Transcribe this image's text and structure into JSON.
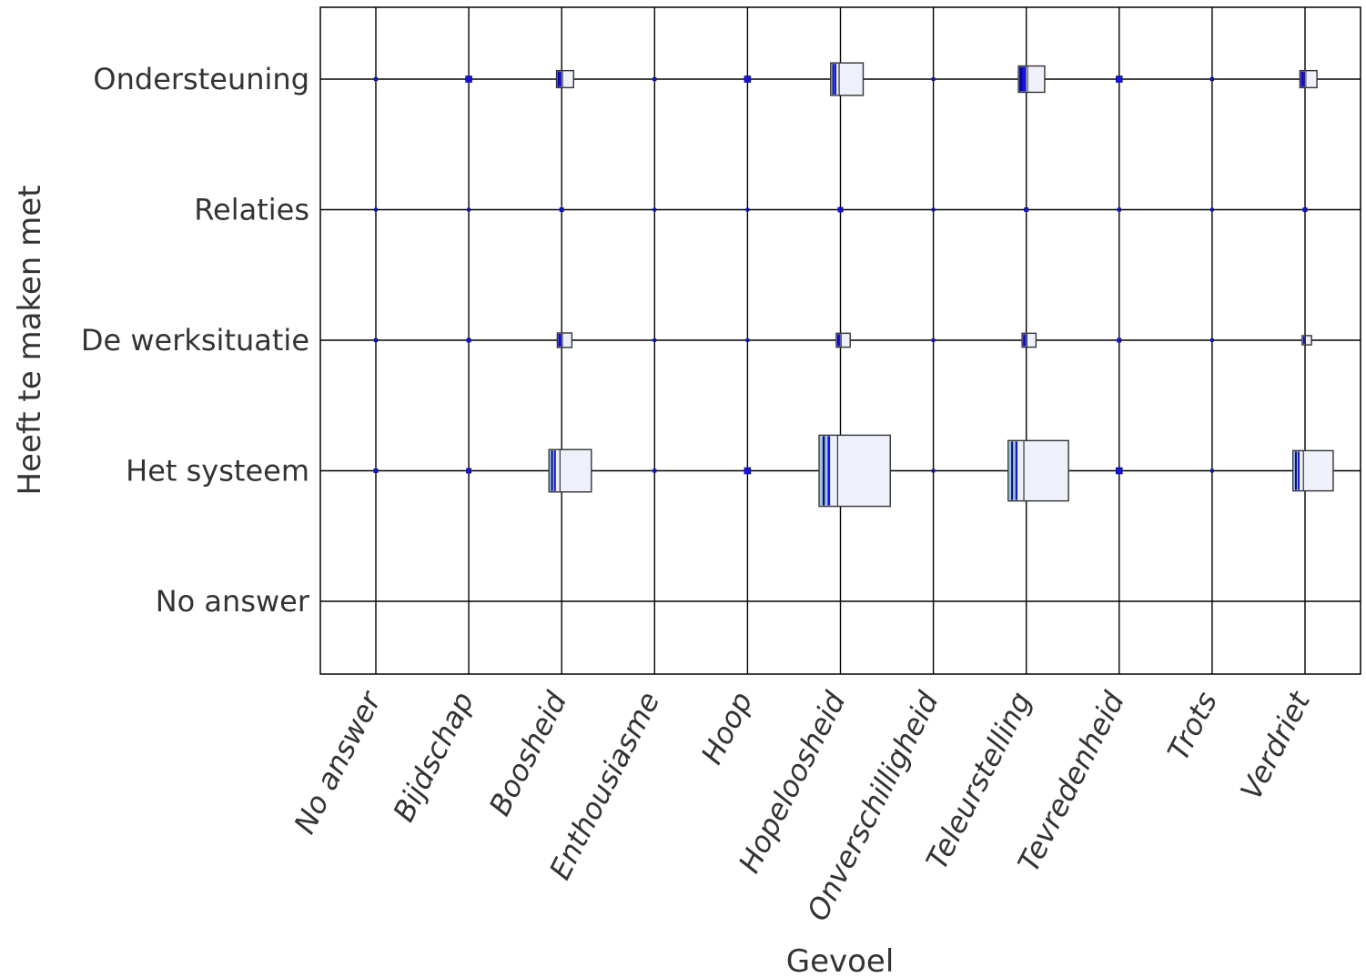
{
  "chart_data": {
    "type": "heatmap",
    "title": "",
    "xlabel": "Gevoel",
    "ylabel": "Heeft te maken met",
    "grid": true,
    "legend": "none",
    "x_categories": [
      "No answer",
      "Bijdschap",
      "Boosheid",
      "Enthousiasme",
      "Hoop",
      "Hopeloosheid",
      "Onverschilligheid",
      "Teleurstelling",
      "Tevredenheid",
      "Trots",
      "Verdriet"
    ],
    "y_categories": [
      "Ondersteuning",
      "Relaties",
      "De werksituatie",
      "Het systeem",
      "No answer"
    ],
    "cells": [
      {
        "x": "No answer",
        "y": "Ondersteuning",
        "width": 0.1,
        "height": 0.1
      },
      {
        "x": "Bijdschap",
        "y": "Ondersteuning",
        "width": 0.2,
        "height": 0.2
      },
      {
        "x": "Boosheid",
        "y": "Ondersteuning",
        "width": 0.55,
        "height": 0.55
      },
      {
        "x": "Enthousiasme",
        "y": "Ondersteuning",
        "width": 0.1,
        "height": 0.1
      },
      {
        "x": "Hoop",
        "y": "Ondersteuning",
        "width": 0.2,
        "height": 0.2
      },
      {
        "x": "Hopeloosheid",
        "y": "Ondersteuning",
        "width": 1.05,
        "height": 1.05
      },
      {
        "x": "Onverschilligheid",
        "y": "Ondersteuning",
        "width": 0.05,
        "height": 0.05
      },
      {
        "x": "Teleurstelling",
        "y": "Ondersteuning",
        "width": 0.85,
        "height": 0.85
      },
      {
        "x": "Tevredenheid",
        "y": "Ondersteuning",
        "width": 0.2,
        "height": 0.2
      },
      {
        "x": "Trots",
        "y": "Ondersteuning",
        "width": 0.1,
        "height": 0.1
      },
      {
        "x": "Verdriet",
        "y": "Ondersteuning",
        "width": 0.55,
        "height": 0.55
      },
      {
        "x": "No answer",
        "y": "Relaties",
        "width": 0.05,
        "height": 0.05
      },
      {
        "x": "Bijdschap",
        "y": "Relaties",
        "width": 0.05,
        "height": 0.05
      },
      {
        "x": "Boosheid",
        "y": "Relaties",
        "width": 0.12,
        "height": 0.12
      },
      {
        "x": "Enthousiasme",
        "y": "Relaties",
        "width": 0.05,
        "height": 0.05
      },
      {
        "x": "Hoop",
        "y": "Relaties",
        "width": 0.05,
        "height": 0.05
      },
      {
        "x": "Hopeloosheid",
        "y": "Relaties",
        "width": 0.15,
        "height": 0.15
      },
      {
        "x": "Onverschilligheid",
        "y": "Relaties",
        "width": 0.03,
        "height": 0.03
      },
      {
        "x": "Teleurstelling",
        "y": "Relaties",
        "width": 0.12,
        "height": 0.12
      },
      {
        "x": "Tevredenheid",
        "y": "Relaties",
        "width": 0.1,
        "height": 0.1
      },
      {
        "x": "Trots",
        "y": "Relaties",
        "width": 0.07,
        "height": 0.07
      },
      {
        "x": "Verdriet",
        "y": "Relaties",
        "width": 0.12,
        "height": 0.12
      },
      {
        "x": "No answer",
        "y": "De werksituatie",
        "width": 0.1,
        "height": 0.1
      },
      {
        "x": "Bijdschap",
        "y": "De werksituatie",
        "width": 0.12,
        "height": 0.12
      },
      {
        "x": "Boosheid",
        "y": "De werksituatie",
        "width": 0.47,
        "height": 0.47
      },
      {
        "x": "Enthousiasme",
        "y": "De werksituatie",
        "width": 0.05,
        "height": 0.05
      },
      {
        "x": "Hoop",
        "y": "De werksituatie",
        "width": 0.08,
        "height": 0.08
      },
      {
        "x": "Hopeloosheid",
        "y": "De werksituatie",
        "width": 0.45,
        "height": 0.45
      },
      {
        "x": "Onverschilligheid",
        "y": "De werksituatie",
        "width": 0.03,
        "height": 0.03
      },
      {
        "x": "Teleurstelling",
        "y": "De werksituatie",
        "width": 0.45,
        "height": 0.45
      },
      {
        "x": "Tevredenheid",
        "y": "De werksituatie",
        "width": 0.12,
        "height": 0.12
      },
      {
        "x": "Trots",
        "y": "De werksituatie",
        "width": 0.08,
        "height": 0.08
      },
      {
        "x": "Verdriet",
        "y": "De werksituatie",
        "width": 0.3,
        "height": 0.3
      },
      {
        "x": "No answer",
        "y": "Het systeem",
        "width": 0.12,
        "height": 0.12
      },
      {
        "x": "Bijdschap",
        "y": "Het systeem",
        "width": 0.15,
        "height": 0.15
      },
      {
        "x": "Boosheid",
        "y": "Het systeem",
        "width": 1.37,
        "height": 1.37
      },
      {
        "x": "Enthousiasme",
        "y": "Het systeem",
        "width": 0.1,
        "height": 0.1
      },
      {
        "x": "Hoop",
        "y": "Het systeem",
        "width": 0.2,
        "height": 0.2
      },
      {
        "x": "Hopeloosheid",
        "y": "Het systeem",
        "width": 2.3,
        "height": 2.3
      },
      {
        "x": "Onverschilligheid",
        "y": "Het systeem",
        "width": 0.08,
        "height": 0.08
      },
      {
        "x": "Teleurstelling",
        "y": "Het systeem",
        "width": 1.95,
        "height": 1.95
      },
      {
        "x": "Tevredenheid",
        "y": "Het systeem",
        "width": 0.2,
        "height": 0.2
      },
      {
        "x": "Trots",
        "y": "Het systeem",
        "width": 0.07,
        "height": 0.07
      },
      {
        "x": "Verdriet",
        "y": "Het systeem",
        "width": 1.3,
        "height": 1.3
      }
    ],
    "colors": {
      "box_fill": "#eef1fc",
      "box_stroke": "#333333",
      "stripe_blue": "#1414e6",
      "stripe_navy": "#0a0a8c",
      "stripe_teal": "#9cc8c8",
      "grid": "#000000"
    }
  }
}
